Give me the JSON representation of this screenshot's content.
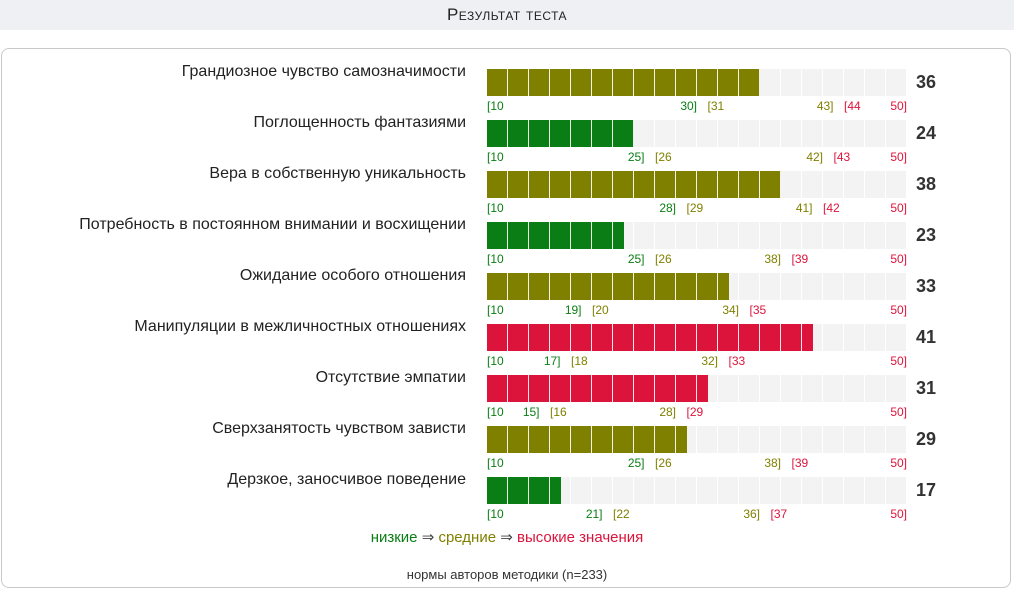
{
  "header": {
    "title": "Результат теста"
  },
  "colors": {
    "low": "#0a7d14",
    "mid": "#7f7f00",
    "high": "#dc143c"
  },
  "chart_data": {
    "type": "bar",
    "orientation": "horizontal",
    "scale": [
      10,
      50
    ],
    "rows": [
      {
        "label": "Грандиозное чувство самозначимости",
        "value": 36,
        "level": "mid",
        "ticks": {
          "low_start": "[10",
          "low_end": "30]",
          "mid_start": "[31",
          "mid_end": "43]",
          "high_start": "[44",
          "high_end": "50]"
        },
        "bounds": [
          10,
          30,
          31,
          43,
          44,
          50
        ]
      },
      {
        "label": "Поглощенность фантазиями",
        "value": 24,
        "level": "low",
        "ticks": {
          "low_start": "[10",
          "low_end": "25]",
          "mid_start": "[26",
          "mid_end": "42]",
          "high_start": "[43",
          "high_end": "50]"
        },
        "bounds": [
          10,
          25,
          26,
          42,
          43,
          50
        ]
      },
      {
        "label": "Вера в собственную уникальность",
        "value": 38,
        "level": "mid",
        "ticks": {
          "low_start": "[10",
          "low_end": "28]",
          "mid_start": "[29",
          "mid_end": "41]",
          "high_start": "[42",
          "high_end": "50]"
        },
        "bounds": [
          10,
          28,
          29,
          41,
          42,
          50
        ]
      },
      {
        "label": "Потребность в постоянном внимании и восхищении",
        "value": 23,
        "level": "low",
        "ticks": {
          "low_start": "[10",
          "low_end": "25]",
          "mid_start": "[26",
          "mid_end": "38]",
          "high_start": "[39",
          "high_end": "50]"
        },
        "bounds": [
          10,
          25,
          26,
          38,
          39,
          50
        ]
      },
      {
        "label": "Ожидание особого отношения",
        "value": 33,
        "level": "mid",
        "ticks": {
          "low_start": "[10",
          "low_end": "19]",
          "mid_start": "[20",
          "mid_end": "34]",
          "high_start": "[35",
          "high_end": "50]"
        },
        "bounds": [
          10,
          19,
          20,
          34,
          35,
          50
        ]
      },
      {
        "label": "Манипуляции в межличностных отношениях",
        "value": 41,
        "level": "high",
        "ticks": {
          "low_start": "[10",
          "low_end": "17]",
          "mid_start": "[18",
          "mid_end": "32]",
          "high_start": "[33",
          "high_end": "50]"
        },
        "bounds": [
          10,
          17,
          18,
          32,
          33,
          50
        ]
      },
      {
        "label": "Отсутствие эмпатии",
        "value": 31,
        "level": "high",
        "ticks": {
          "low_start": "[10",
          "low_end": "15]",
          "mid_start": "[16",
          "mid_end": "28]",
          "high_start": "[29",
          "high_end": "50]"
        },
        "bounds": [
          10,
          15,
          16,
          28,
          29,
          50
        ]
      },
      {
        "label": "Сверхзанятость чувством зависти",
        "value": 29,
        "level": "mid",
        "ticks": {
          "low_start": "[10",
          "low_end": "25]",
          "mid_start": "[26",
          "mid_end": "38]",
          "high_start": "[39",
          "high_end": "50]"
        },
        "bounds": [
          10,
          25,
          26,
          38,
          39,
          50
        ]
      },
      {
        "label": "Дерзкое, заносчивое поведение",
        "value": 17,
        "level": "low",
        "ticks": {
          "low_start": "[10",
          "low_end": "21]",
          "mid_start": "[22",
          "mid_end": "36]",
          "high_start": "[37",
          "high_end": "50]"
        },
        "bounds": [
          10,
          21,
          22,
          36,
          37,
          50
        ]
      }
    ]
  },
  "legend": {
    "low": "низкие",
    "arrow1": " ⇒ ",
    "mid": "средние",
    "arrow2": " ⇒ ",
    "high": "высокие значения"
  },
  "note": "нормы авторов методики (n=233)"
}
